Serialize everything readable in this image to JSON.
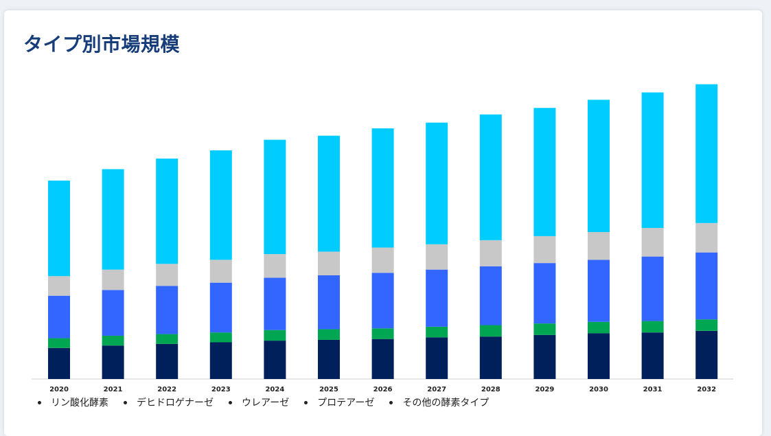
{
  "page": {
    "title": "タイプ別市場規模"
  },
  "colors": {
    "series": [
      "#00205b",
      "#00a651",
      "#3366ff",
      "#c8c8c8",
      "#00ccff"
    ],
    "axis": "#cccccc"
  },
  "chart_data": {
    "type": "bar",
    "stacked": true,
    "title": "タイプ別市場規模",
    "xlabel": "",
    "ylabel": "",
    "ylim": [
      0,
      370
    ],
    "grid": false,
    "legend_position": "bottom-left",
    "categories": [
      "2020",
      "2021",
      "2022",
      "2023",
      "2024",
      "2025",
      "2026",
      "2027",
      "2028",
      "2029",
      "2030",
      "2031",
      "2032"
    ],
    "series": [
      {
        "name": "リン酸化酵素",
        "values": [
          38,
          41,
          43,
          45,
          47,
          48,
          49,
          51,
          52,
          54,
          56,
          57,
          59
        ]
      },
      {
        "name": "デヒドロゲナーゼ",
        "values": [
          12,
          12,
          12,
          12,
          13,
          13,
          13,
          13,
          14,
          14,
          14,
          14,
          14
        ]
      },
      {
        "name": "ウレアーゼ",
        "values": [
          52,
          56,
          59,
          61,
          64,
          66,
          68,
          70,
          72,
          74,
          76,
          79,
          82
        ]
      },
      {
        "name": "プロテアーゼ",
        "values": [
          24,
          25,
          27,
          28,
          29,
          29,
          31,
          31,
          32,
          33,
          34,
          35,
          36
        ]
      },
      {
        "name": "その他の酵素タイプ",
        "values": [
          117,
          123,
          129,
          134,
          140,
          142,
          146,
          149,
          154,
          157,
          162,
          166,
          170
        ]
      }
    ]
  }
}
